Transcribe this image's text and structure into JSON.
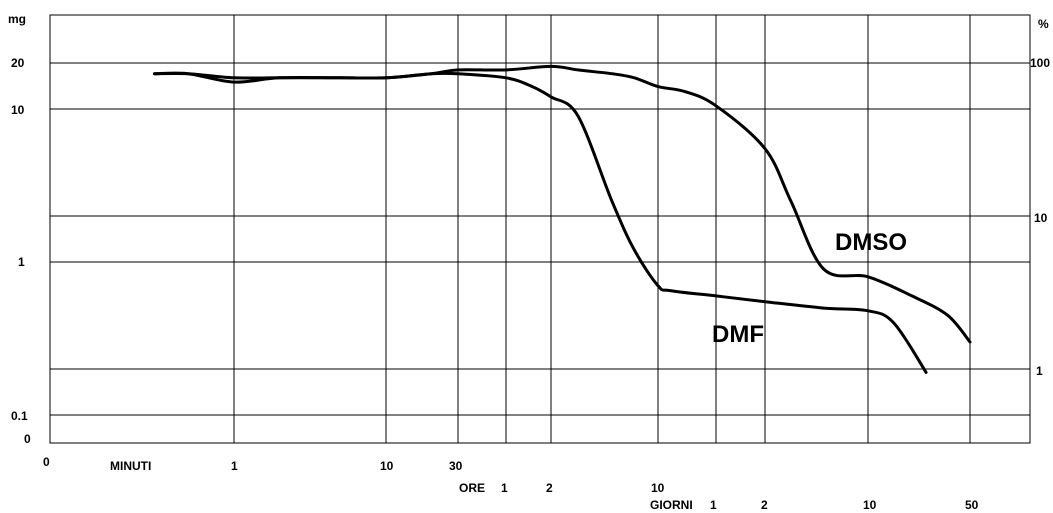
{
  "chart_data": {
    "type": "line",
    "title": "",
    "left_axis": {
      "unit_label": "mg",
      "scale": "log",
      "ticks": [
        {
          "value": 20,
          "label": "20"
        },
        {
          "value": 10,
          "label": "10"
        },
        {
          "value": 1,
          "label": "1"
        },
        {
          "value": 0.1,
          "label": "0.1"
        },
        {
          "value": 0.05,
          "label": "0"
        }
      ]
    },
    "right_axis": {
      "unit_label": "%",
      "ticks": [
        {
          "value": 100,
          "label": "100"
        },
        {
          "value": 10,
          "label": "10"
        },
        {
          "value": 1,
          "label": "1"
        }
      ]
    },
    "x_axis": {
      "scale": "log (time, mixed units)",
      "origin_label": "0",
      "groups": [
        {
          "name": "MINUTI",
          "ticks": [
            "1",
            "10",
            "30"
          ]
        },
        {
          "name": "ORE",
          "ticks": [
            "1",
            "2",
            "10"
          ]
        },
        {
          "name": "GIORNI",
          "ticks": [
            "1",
            "2",
            "10",
            "50"
          ]
        }
      ]
    },
    "series": [
      {
        "name": "DMSO",
        "x_minutes": [
          0.3,
          0.5,
          1,
          2,
          5,
          10,
          20,
          30,
          60,
          120,
          180,
          300,
          420,
          600,
          900,
          1440,
          2880,
          4320,
          7200,
          14400,
          28800,
          50400,
          72000
        ],
        "y_mg": [
          17,
          17,
          16,
          16,
          16,
          16,
          17,
          18,
          18,
          19,
          18,
          17,
          16,
          14,
          13,
          10.5,
          5.5,
          2.5,
          0.9,
          0.8,
          0.6,
          0.45,
          0.3
        ]
      },
      {
        "name": "DMF",
        "x_minutes": [
          0.3,
          0.5,
          1,
          2,
          5,
          10,
          20,
          30,
          60,
          90,
          120,
          180,
          300,
          420,
          600,
          720,
          1440,
          2880,
          7200,
          14400,
          21600,
          36000
        ],
        "y_mg": [
          17,
          17,
          15,
          16,
          16,
          16,
          17,
          17,
          16,
          14,
          12,
          9,
          2.5,
          1.2,
          0.7,
          0.65,
          0.6,
          0.55,
          0.5,
          0.48,
          0.4,
          0.19
        ]
      }
    ]
  }
}
